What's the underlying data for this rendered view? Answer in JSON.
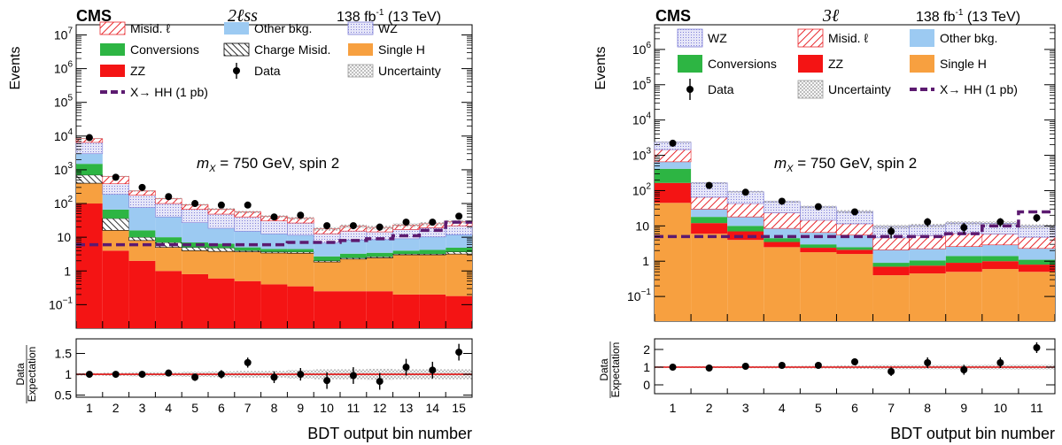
{
  "colors": {
    "misid": "#e8262b",
    "other": "#9ccaf2",
    "wz": "#7f7fd8",
    "wz_fill": "#e6e6f8",
    "conversions": "#2db543",
    "charge": "#000000",
    "singleh": "#f7a040",
    "zz": "#f41414",
    "data": "#000000",
    "signal": "#5c1a70",
    "unity": "#e01010"
  },
  "chart_data": [
    {
      "type": "bar",
      "stacked": true,
      "log_y": true,
      "experiment": "CMS",
      "channel": "2ℓss",
      "lumi_label": "138 fb",
      "lumi_sup": "-1",
      "energy_label": "(13 TeV)",
      "annotation": "m_X = 750 GeV, spin 2",
      "annotation_parts": [
        "m",
        "X",
        " = 750 GeV, spin 2"
      ],
      "ylabel": "Events",
      "xlabel": "BDT output bin number",
      "ratio_ylabel": [
        "Data",
        "Expectation"
      ],
      "ylim": [
        0.02,
        20000000
      ],
      "ratio_ylim": [
        0.45,
        1.85
      ],
      "y_ticks": [
        {
          "value": 0.1,
          "label": "10",
          "sup": "−1"
        },
        {
          "value": 1,
          "label": "1",
          "sup": ""
        },
        {
          "value": 10,
          "label": "10",
          "sup": ""
        },
        {
          "value": 100,
          "label": "10",
          "sup": "2"
        },
        {
          "value": 1000,
          "label": "10",
          "sup": "3"
        },
        {
          "value": 10000,
          "label": "10",
          "sup": "4"
        },
        {
          "value": 100000,
          "label": "10",
          "sup": "5"
        },
        {
          "value": 1000000,
          "label": "10",
          "sup": "6"
        },
        {
          "value": 10000000,
          "label": "10",
          "sup": "7"
        }
      ],
      "ratio_ticks": [
        {
          "value": 0.5,
          "label": "0.5"
        },
        {
          "value": 1,
          "label": "1"
        },
        {
          "value": 1.5,
          "label": "1.5"
        }
      ],
      "categories": [
        "1",
        "2",
        "3",
        "4",
        "5",
        "6",
        "7",
        "8",
        "9",
        "10",
        "11",
        "12",
        "13",
        "14",
        "15"
      ],
      "series": [
        {
          "name": "ZZ",
          "key": "zz",
          "values": [
            100,
            4,
            2,
            1,
            0.8,
            0.6,
            0.5,
            0.4,
            0.35,
            0.25,
            0.25,
            0.25,
            0.2,
            0.2,
            0.18
          ]
        },
        {
          "name": "Single H",
          "key": "singleh",
          "values": [
            300,
            12,
            6,
            4,
            3.2,
            3.2,
            3.2,
            3,
            3,
            1.6,
            2,
            2.2,
            2.8,
            2.8,
            3
          ]
        },
        {
          "name": "Charge Misid.",
          "key": "charge",
          "values": [
            300,
            20,
            2,
            2,
            1,
            1,
            0.3,
            0.3,
            0.3,
            0.15,
            0.2,
            0.2,
            0.2,
            0.2,
            0.5
          ]
        },
        {
          "name": "Conversions",
          "key": "conversions",
          "values": [
            800,
            30,
            6,
            3,
            2,
            1.6,
            1,
            0.8,
            0.8,
            0.7,
            0.8,
            0.8,
            0.8,
            1,
            1.2
          ]
        },
        {
          "name": "Other bkg.",
          "key": "other",
          "values": [
            1500,
            120,
            60,
            30,
            20,
            12,
            10,
            8,
            7,
            4,
            5,
            5,
            5,
            6,
            7
          ]
        },
        {
          "name": "WZ",
          "key": "wz",
          "values": [
            3500,
            200,
            100,
            60,
            40,
            30,
            25,
            18,
            15,
            6,
            7,
            6,
            8,
            9,
            10
          ]
        },
        {
          "name": "Misid. ℓ",
          "key": "misid",
          "values": [
            1900,
            250,
            60,
            40,
            25,
            20,
            16,
            11,
            10,
            5,
            6,
            5,
            6,
            6,
            7
          ]
        }
      ],
      "data": {
        "name": "Data",
        "values": [
          9000,
          600,
          300,
          160,
          100,
          90,
          90,
          40,
          45,
          22,
          22,
          20,
          28,
          28,
          42
        ],
        "errors": [
          95,
          25,
          17,
          13,
          10,
          9.5,
          9.5,
          6.3,
          6.7,
          4.7,
          4.7,
          4.5,
          5.3,
          5.3,
          6.5
        ]
      },
      "signal": {
        "name": "X→ HH (1 pb)",
        "values": [
          6,
          6,
          6,
          6,
          6,
          6,
          6,
          6,
          7,
          7,
          8,
          9,
          11,
          16,
          28
        ]
      },
      "ratio": {
        "values": [
          1.0,
          1.0,
          1.0,
          1.03,
          0.93,
          1.0,
          1.28,
          0.93,
          1.0,
          0.85,
          0.97,
          0.83,
          1.17,
          1.1,
          1.53
        ],
        "errors": [
          0.02,
          0.04,
          0.06,
          0.08,
          0.09,
          0.1,
          0.12,
          0.14,
          0.15,
          0.2,
          0.2,
          0.2,
          0.2,
          0.2,
          0.2
        ],
        "unc": [
          0.03,
          0.04,
          0.05,
          0.05,
          0.06,
          0.07,
          0.08,
          0.08,
          0.1,
          0.12,
          0.12,
          0.13,
          0.12,
          0.12,
          0.12
        ]
      },
      "legend": [
        {
          "key": "misid",
          "label": "Misid. ℓ",
          "style": "hatch-red"
        },
        {
          "key": "other",
          "label": "Other bkg.",
          "style": "fill"
        },
        {
          "key": "wz",
          "label": "WZ",
          "style": "dots"
        },
        {
          "key": "conversions",
          "label": "Conversions",
          "style": "fill"
        },
        {
          "key": "charge",
          "label": "Charge Misid.",
          "style": "hatch-black"
        },
        {
          "key": "singleh",
          "label": "Single H",
          "style": "fill"
        },
        {
          "key": "zz",
          "label": "ZZ",
          "style": "fill"
        },
        {
          "key": "data",
          "label": "Data",
          "style": "marker"
        },
        {
          "key": "unc",
          "label": "Uncertainty",
          "style": "crosshatch"
        },
        {
          "key": "signal",
          "label": "X→ HH (1 pb)",
          "style": "dash"
        }
      ]
    },
    {
      "type": "bar",
      "stacked": true,
      "log_y": true,
      "experiment": "CMS",
      "channel": "3ℓ",
      "lumi_label": "138 fb",
      "lumi_sup": "-1",
      "energy_label": "(13 TeV)",
      "annotation": "m_X = 750 GeV, spin 2",
      "annotation_parts": [
        "m",
        "X",
        " = 750 GeV, spin 2"
      ],
      "ylabel": "Events",
      "xlabel": "BDT output bin number",
      "ratio_ylabel": [
        "Data",
        "Expectation"
      ],
      "ylim": [
        0.02,
        5000000
      ],
      "ratio_ylim": [
        -0.5,
        2.6
      ],
      "y_ticks": [
        {
          "value": 0.1,
          "label": "10",
          "sup": "−1"
        },
        {
          "value": 1,
          "label": "1",
          "sup": ""
        },
        {
          "value": 10,
          "label": "10",
          "sup": ""
        },
        {
          "value": 100,
          "label": "10",
          "sup": "2"
        },
        {
          "value": 1000,
          "label": "10",
          "sup": "3"
        },
        {
          "value": 10000,
          "label": "10",
          "sup": "4"
        },
        {
          "value": 100000,
          "label": "10",
          "sup": "5"
        },
        {
          "value": 1000000,
          "label": "10",
          "sup": "6"
        }
      ],
      "ratio_ticks": [
        {
          "value": 0,
          "label": "0"
        },
        {
          "value": 1,
          "label": "1"
        },
        {
          "value": 2,
          "label": "2"
        }
      ],
      "categories": [
        "1",
        "2",
        "3",
        "4",
        "5",
        "6",
        "7",
        "8",
        "9",
        "10",
        "11"
      ],
      "series": [
        {
          "name": "Single H",
          "key": "singleh",
          "values": [
            45,
            6,
            4,
            2.5,
            1.8,
            1.6,
            0.4,
            0.45,
            0.5,
            0.6,
            0.5
          ]
        },
        {
          "name": "ZZ",
          "key": "zz",
          "values": [
            120,
            6,
            3,
            1,
            0.6,
            0.5,
            0.3,
            0.3,
            0.4,
            0.4,
            0.3
          ]
        },
        {
          "name": "Conversions",
          "key": "conversions",
          "values": [
            250,
            6,
            3,
            1,
            0.6,
            0.4,
            0.2,
            0.3,
            0.5,
            0.4,
            0.3
          ]
        },
        {
          "name": "Other bkg.",
          "key": "other",
          "values": [
            240,
            12,
            8,
            4,
            3.5,
            3,
            1.2,
            1.2,
            1.2,
            1.5,
            1.2
          ]
        },
        {
          "name": "Misid. ℓ",
          "key": "misid",
          "values": [
            800,
            35,
            25,
            15,
            8,
            6,
            2.5,
            3,
            3.5,
            3,
            2.5
          ]
        },
        {
          "name": "WZ",
          "key": "wz",
          "values": [
            900,
            100,
            50,
            25,
            20,
            14,
            5,
            5,
            6,
            6,
            5
          ]
        }
      ],
      "data": {
        "name": "Data",
        "values": [
          2200,
          140,
          90,
          50,
          35,
          25,
          7,
          13,
          9,
          13,
          17
        ],
        "errors": [
          47,
          12,
          9.5,
          7,
          6,
          5,
          2.6,
          3.6,
          3,
          3.6,
          4.1
        ]
      },
      "signal": {
        "name": "X→ HH (1 pb)",
        "values": [
          5,
          5,
          5,
          5,
          5,
          5,
          5,
          5,
          6,
          10,
          25
        ]
      },
      "ratio": {
        "values": [
          1.0,
          0.95,
          1.05,
          1.1,
          1.1,
          1.3,
          0.75,
          1.25,
          0.85,
          1.25,
          2.1
        ],
        "errors": [
          0.03,
          0.08,
          0.1,
          0.12,
          0.15,
          0.2,
          0.25,
          0.3,
          0.28,
          0.3,
          0.3
        ],
        "unc": [
          0.04,
          0.05,
          0.06,
          0.07,
          0.08,
          0.1,
          0.12,
          0.12,
          0.12,
          0.13,
          0.13
        ]
      },
      "legend": [
        {
          "key": "wz",
          "label": "WZ",
          "style": "dots"
        },
        {
          "key": "misid",
          "label": "Misid. ℓ",
          "style": "hatch-red"
        },
        {
          "key": "other",
          "label": "Other bkg.",
          "style": "fill"
        },
        {
          "key": "conversions",
          "label": "Conversions",
          "style": "fill"
        },
        {
          "key": "zz",
          "label": "ZZ",
          "style": "fill"
        },
        {
          "key": "singleh",
          "label": "Single H",
          "style": "fill"
        },
        {
          "key": "data",
          "label": "Data",
          "style": "marker"
        },
        {
          "key": "unc",
          "label": "Uncertainty",
          "style": "crosshatch"
        },
        {
          "key": "signal",
          "label": "X→ HH (1 pb)",
          "style": "dash"
        }
      ]
    }
  ]
}
